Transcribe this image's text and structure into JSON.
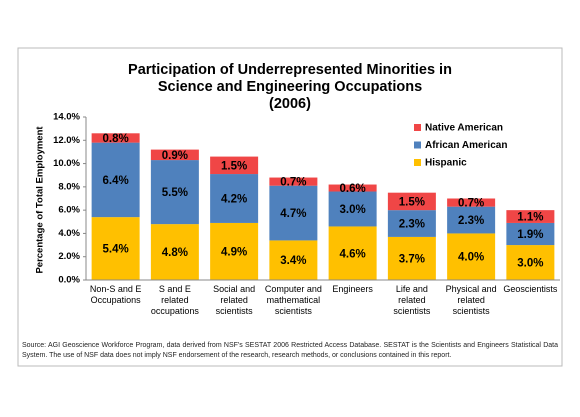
{
  "chart_data": {
    "type": "stacked-bar",
    "title": "Participation of Underrepresented Minorities in\nScience and Engineering Occupations\n(2006)",
    "y_label": "Percentage of Total Employment",
    "categories": [
      "Non-S and E\nOccupations",
      "S and E\nrelated\noccupations",
      "Social and\nrelated\nscientists",
      "Computer and\nmathematical\nscientists",
      "Engineers",
      "Life and\nrelated\nscientists",
      "Physical and\nrelated\nscientists",
      "Geoscientists"
    ],
    "series": [
      {
        "name": "Hispanic",
        "color": "#ffc000",
        "values": [
          5.4,
          4.8,
          4.9,
          3.4,
          4.6,
          3.7,
          4.0,
          3.0
        ],
        "value_labels": [
          "5.4%",
          "4.8%",
          "4.9%",
          "3.4%",
          "4.6%",
          "3.7%",
          "4.0%",
          "3.0%"
        ]
      },
      {
        "name": "African American",
        "color": "#4f81bd",
        "values": [
          6.4,
          5.5,
          4.2,
          4.7,
          3.0,
          2.3,
          2.3,
          1.9
        ],
        "value_labels": [
          "6.4%",
          "5.5%",
          "4.2%",
          "4.7%",
          "3.0%",
          "2.3%",
          "2.3%",
          "1.9%"
        ]
      },
      {
        "name": "Native American",
        "color": "#f04646",
        "values": [
          0.8,
          0.9,
          1.5,
          0.7,
          0.6,
          1.5,
          0.7,
          1.1
        ],
        "value_labels": [
          "0.8%",
          "0.9%",
          "1.5%",
          "0.7%",
          "0.6%",
          "1.5%",
          "0.7%",
          "1.1%"
        ]
      }
    ],
    "ylim": [
      0,
      14
    ],
    "yticks": [
      {
        "value": 0,
        "label": "0.0%"
      },
      {
        "value": 2,
        "label": "2.0%"
      },
      {
        "value": 4,
        "label": "4.0%"
      },
      {
        "value": 6,
        "label": "6.0%"
      },
      {
        "value": 8,
        "label": "8.0%"
      },
      {
        "value": 10,
        "label": "10.0%"
      },
      {
        "value": 12,
        "label": "12.0%"
      },
      {
        "value": 14,
        "label": "14.0%"
      }
    ],
    "grid": false,
    "legend": "top-right",
    "source": "Source: AGI Geoscience Workforce Program, data derived from NSF's SESTAT 2006 Restricted Access Database. SESTAT is the Scientists and Engineers Statistical Data System. The use of NSF data does not imply NSF endorsement of the research, research methods, or conclusions contained in this report."
  }
}
